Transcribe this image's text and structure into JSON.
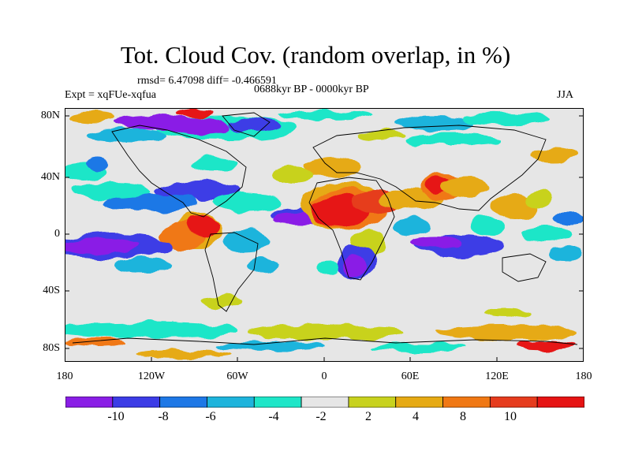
{
  "title": "Tot. Cloud Cov. (random overlap, in %)",
  "stats": "rmsd= 6.47098 diff= -0.466591",
  "period": "0688kyr BP - 0000kyr BP",
  "expt": "Expt = xqFUe-xqfua",
  "season": "JJA",
  "map": {
    "lat_labels": [
      "80N",
      "40N",
      "0",
      "40S",
      "80S"
    ],
    "lon_labels": [
      "180",
      "120W",
      "60W",
      "0",
      "60E",
      "120E",
      "180"
    ]
  },
  "colorbar": {
    "labels": [
      "-10",
      "-8",
      "-6",
      "-4",
      "-2",
      "2",
      "4",
      "8",
      "10"
    ],
    "colors": [
      "#8a1ee6",
      "#3c3ce6",
      "#1e78e6",
      "#1eb4dc",
      "#1ee6c8",
      "#e6e6e6",
      "#c8d21e",
      "#e6aa14",
      "#f07814",
      "#e63c1e",
      "#e61414"
    ]
  }
}
